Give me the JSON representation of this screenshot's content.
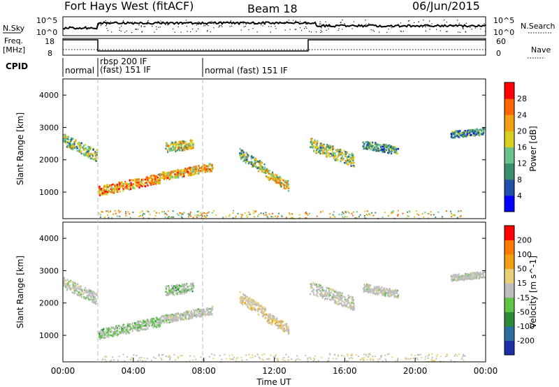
{
  "header": {
    "title": "Fort Hays West (fitACF)",
    "beam": "Beam 18",
    "date": "06/Jun/2015"
  },
  "top_panels": {
    "nsky_label": "N.Sky",
    "nsearch_label": "N.Search",
    "nsky_ticks": [
      "10^5",
      "10^0"
    ],
    "freq_label_lines": [
      "Freq.",
      "[MHz]"
    ],
    "freq_ticks": [
      "18",
      "8"
    ],
    "nave_label": "Nave",
    "nave_ticks": [
      "60",
      "0"
    ],
    "cpid_label": "CPID"
  },
  "cpid_segments": [
    {
      "lines": [
        "normal"
      ]
    },
    {
      "lines": [
        "rbsp 200 IF",
        "(fast) 151 IF"
      ]
    },
    {
      "lines": [
        "normal (fast) 151 IF"
      ]
    }
  ],
  "colors": {
    "power": [
      "#0000ff",
      "#2050a8",
      "#3c8c6e",
      "#69c38b",
      "#d8d020",
      "#f0a010",
      "#ff6600",
      "#ff0000"
    ],
    "velocity": [
      "#1a2ea8",
      "#2d6e9e",
      "#2c8a3a",
      "#5dc444",
      "#bdbdbd",
      "#e8d078",
      "#f0a010",
      "#ff7a00",
      "#ff0000"
    ]
  },
  "chart_data": [
    {
      "type": "heatmap",
      "name": "power",
      "title": "",
      "xlabel": "Time UT",
      "ylabel": "Slant Range [km]",
      "xlim": [
        0,
        24
      ],
      "ylim": [
        180,
        4500
      ],
      "x_ticks": [
        "00:00",
        "04:00",
        "08:00",
        "12:00",
        "16:00",
        "20:00",
        "00:00"
      ],
      "y_ticks": [
        1000,
        2000,
        3000,
        4000
      ],
      "colorbar_label": "Power [dB]",
      "colorbar_ticks": [
        "28",
        "24",
        "20",
        "16",
        "12",
        "8",
        "4"
      ],
      "colorbar_range": [
        0,
        30
      ],
      "scatter_regions": [
        {
          "t_start": 0.0,
          "t_end": 1.9,
          "range_start": 2650,
          "range_end": 2150,
          "width_km": 350,
          "level": 0.45
        },
        {
          "t_start": 2.0,
          "t_end": 5.5,
          "range_start": 1050,
          "range_end": 1450,
          "width_km": 300,
          "level": 0.75
        },
        {
          "t_start": 5.5,
          "t_end": 8.5,
          "range_start": 1500,
          "range_end": 1800,
          "width_km": 250,
          "level": 0.7
        },
        {
          "t_start": 5.8,
          "t_end": 7.4,
          "range_start": 2400,
          "range_end": 2500,
          "width_km": 300,
          "level": 0.55
        },
        {
          "t_start": 10.0,
          "t_end": 11.5,
          "range_start": 2200,
          "range_end": 1700,
          "width_km": 350,
          "level": 0.45
        },
        {
          "t_start": 11.5,
          "t_end": 12.8,
          "range_start": 1600,
          "range_end": 1200,
          "width_km": 300,
          "level": 0.6
        },
        {
          "t_start": 14.0,
          "t_end": 16.5,
          "range_start": 2500,
          "range_end": 2000,
          "width_km": 400,
          "level": 0.45
        },
        {
          "t_start": 17.0,
          "t_end": 19.0,
          "range_start": 2500,
          "range_end": 2300,
          "width_km": 250,
          "level": 0.35
        },
        {
          "t_start": 22.0,
          "t_end": 23.9,
          "range_start": 2800,
          "range_end": 2900,
          "width_km": 200,
          "level": 0.3
        }
      ]
    },
    {
      "type": "heatmap",
      "name": "velocity",
      "title": "",
      "xlabel": "Time UT",
      "ylabel": "Slant Range [km]",
      "xlim": [
        0,
        24
      ],
      "ylim": [
        180,
        4500
      ],
      "x_ticks": [
        "00:00",
        "04:00",
        "08:00",
        "12:00",
        "16:00",
        "20:00",
        "00:00"
      ],
      "y_ticks": [
        1000,
        2000,
        3000,
        4000
      ],
      "colorbar_label": "Velocity [m s^-1]",
      "colorbar_ticks": [
        "200",
        "100",
        "50",
        "15",
        "-15",
        "-50",
        "-100",
        "-200"
      ],
      "colorbar_range": [
        -250,
        250
      ],
      "scatter_regions": [
        {
          "t_start": 0.0,
          "t_end": 1.9,
          "range_start": 2650,
          "range_end": 2150,
          "width_km": 350,
          "level": 0.5
        },
        {
          "t_start": 2.0,
          "t_end": 5.5,
          "range_start": 1050,
          "range_end": 1450,
          "width_km": 300,
          "level": 0.4
        },
        {
          "t_start": 5.5,
          "t_end": 8.5,
          "range_start": 1500,
          "range_end": 1800,
          "width_km": 250,
          "level": 0.5
        },
        {
          "t_start": 5.8,
          "t_end": 7.4,
          "range_start": 2400,
          "range_end": 2500,
          "width_km": 300,
          "level": 0.35
        },
        {
          "t_start": 10.0,
          "t_end": 11.5,
          "range_start": 2200,
          "range_end": 1700,
          "width_km": 350,
          "level": 0.6
        },
        {
          "t_start": 11.5,
          "t_end": 12.8,
          "range_start": 1600,
          "range_end": 1200,
          "width_km": 300,
          "level": 0.65
        },
        {
          "t_start": 14.0,
          "t_end": 16.5,
          "range_start": 2500,
          "range_end": 2000,
          "width_km": 400,
          "level": 0.5
        },
        {
          "t_start": 17.0,
          "t_end": 19.0,
          "range_start": 2500,
          "range_end": 2300,
          "width_km": 250,
          "level": 0.5
        },
        {
          "t_start": 22.0,
          "t_end": 23.9,
          "range_start": 2800,
          "range_end": 2900,
          "width_km": 200,
          "level": 0.5
        }
      ]
    }
  ]
}
